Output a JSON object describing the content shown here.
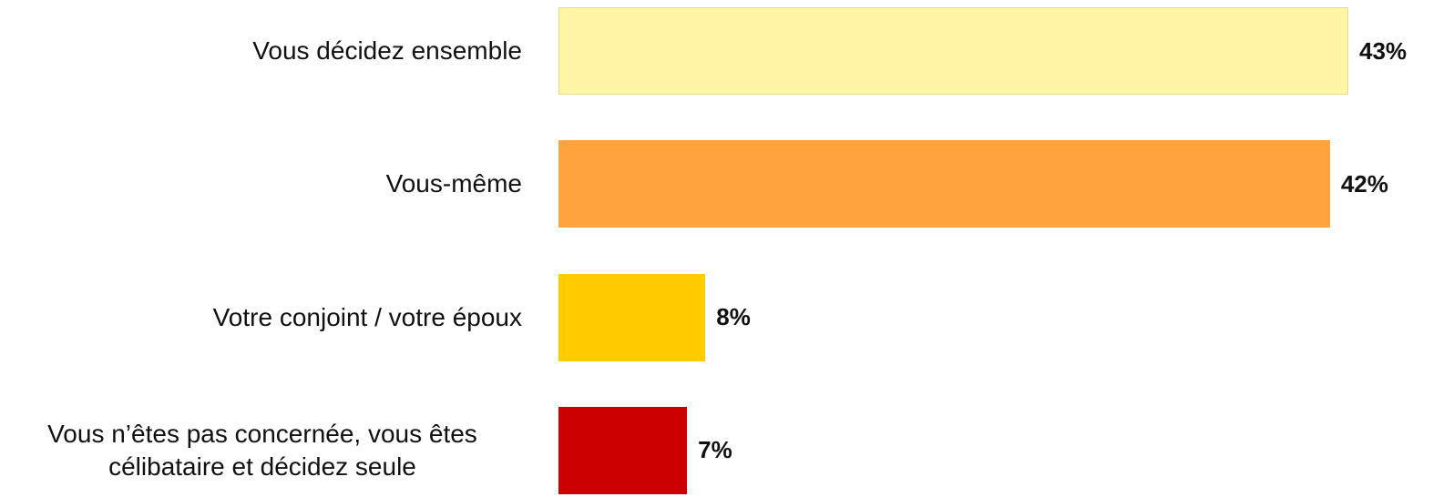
{
  "chart_data": {
    "type": "bar",
    "orientation": "horizontal",
    "categories": [
      "Vous décidez ensemble",
      "Vous-même",
      "Votre conjoint / votre époux",
      "Vous n’êtes pas concernée, vous êtes célibataire et décidez seule"
    ],
    "values": [
      43,
      42,
      8,
      7
    ],
    "value_labels": [
      "43%",
      "42%",
      "8%",
      "7%"
    ],
    "colors": [
      "#FFF5A5",
      "#FFA33E",
      "#FFCC00",
      "#CC0000"
    ],
    "xlim": [
      0,
      43
    ]
  }
}
